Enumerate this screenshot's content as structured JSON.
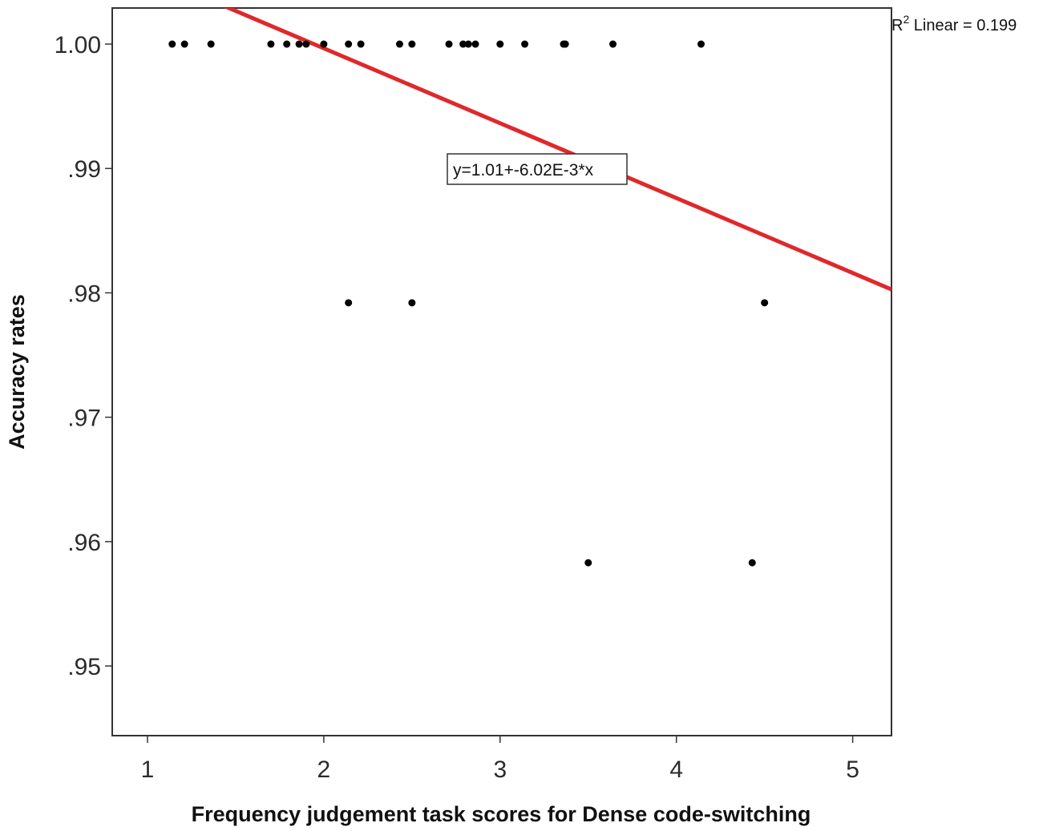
{
  "chart_data": {
    "type": "scatter",
    "xlabel": "Frequency judgement task scores for Dense code-switching",
    "ylabel": "Accuracy rates",
    "xlim": [
      0.8,
      5.22
    ],
    "ylim": [
      0.9444,
      1.0029
    ],
    "x_ticks": [
      1,
      2,
      3,
      4,
      5
    ],
    "x_tick_labels": [
      "1",
      "2",
      "3",
      "4",
      "5"
    ],
    "y_ticks": [
      0.95,
      0.96,
      0.97,
      0.98,
      0.99,
      1.0
    ],
    "y_tick_labels": [
      ".95",
      ".96",
      ".97",
      ".98",
      ".99",
      "1.00"
    ],
    "grid": false,
    "point_color": "#000000",
    "points": [
      {
        "x": 1.14,
        "y": 1.0
      },
      {
        "x": 1.21,
        "y": 1.0
      },
      {
        "x": 1.36,
        "y": 1.0
      },
      {
        "x": 1.7,
        "y": 1.0
      },
      {
        "x": 1.79,
        "y": 1.0
      },
      {
        "x": 1.86,
        "y": 1.0
      },
      {
        "x": 1.9,
        "y": 1.0
      },
      {
        "x": 2.0,
        "y": 1.0
      },
      {
        "x": 2.14,
        "y": 1.0
      },
      {
        "x": 2.21,
        "y": 1.0
      },
      {
        "x": 2.43,
        "y": 1.0
      },
      {
        "x": 2.5,
        "y": 1.0
      },
      {
        "x": 2.71,
        "y": 1.0
      },
      {
        "x": 2.79,
        "y": 1.0
      },
      {
        "x": 2.82,
        "y": 1.0
      },
      {
        "x": 2.86,
        "y": 1.0
      },
      {
        "x": 3.0,
        "y": 1.0
      },
      {
        "x": 3.14,
        "y": 1.0
      },
      {
        "x": 3.36,
        "y": 1.0
      },
      {
        "x": 3.37,
        "y": 1.0
      },
      {
        "x": 3.64,
        "y": 1.0
      },
      {
        "x": 4.14,
        "y": 1.0
      },
      {
        "x": 2.14,
        "y": 0.9792
      },
      {
        "x": 2.5,
        "y": 0.9792
      },
      {
        "x": 4.5,
        "y": 0.9792
      },
      {
        "x": 3.5,
        "y": 0.9583
      },
      {
        "x": 4.43,
        "y": 0.9583
      }
    ],
    "fit_line": {
      "intercept": 1.0117,
      "slope": -0.00602,
      "color": "#e0282c",
      "label": "y=1.01+-6.02E-3*x"
    },
    "r2_label": {
      "prefix": "R",
      "superscript": "2",
      "text": " Linear = 0.199"
    }
  }
}
